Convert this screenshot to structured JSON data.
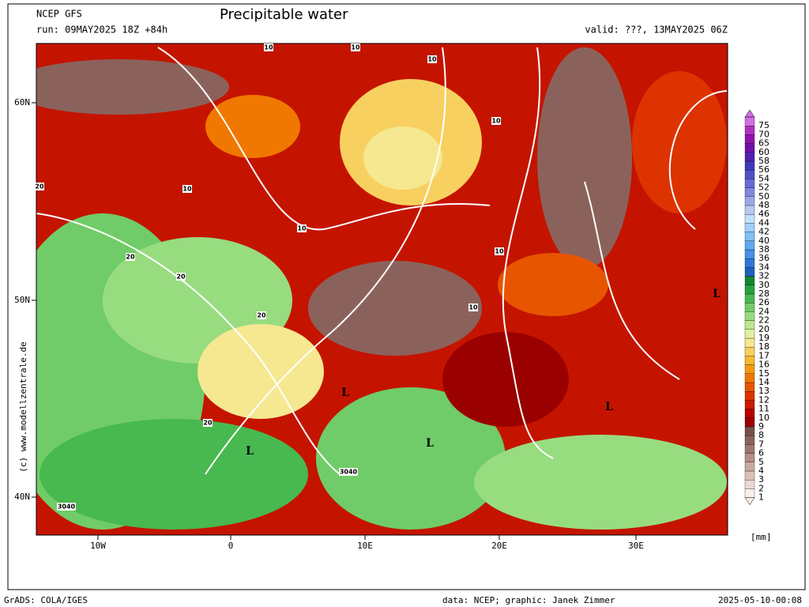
{
  "header": {
    "model": "NCEP GFS",
    "run": "run: 09MAY2025 18Z +84h",
    "title": "Precipitable water",
    "valid": "valid: ???, 13MAY2025 06Z"
  },
  "map": {
    "lat_labels": [
      "60N",
      "50N",
      "40N"
    ],
    "lon_labels": [
      "10W",
      "0",
      "10E",
      "20E",
      "30E"
    ],
    "contour_labels": [
      "10",
      "10",
      "10",
      "10",
      "10",
      "10",
      "10",
      "10",
      "20",
      "20",
      "20",
      "20",
      "20",
      "L",
      "L",
      "L",
      "L",
      "L",
      "3040",
      "3040"
    ]
  },
  "colorbar": {
    "unit": "[mm]",
    "labels": [
      "1",
      "2",
      "3",
      "4",
      "5",
      "6",
      "7",
      "8",
      "9",
      "10",
      "11",
      "12",
      "13",
      "14",
      "15",
      "16",
      "17",
      "18",
      "19",
      "20",
      "22",
      "24",
      "26",
      "28",
      "30",
      "32",
      "34",
      "36",
      "38",
      "40",
      "42",
      "44",
      "46",
      "48",
      "50",
      "52",
      "54",
      "56",
      "58",
      "60",
      "65",
      "70",
      "75"
    ],
    "colors": [
      "#fbeee8",
      "#ecd8d2",
      "#dcc1b8",
      "#c9a99f",
      "#b48f86",
      "#9f776e",
      "#8b625b",
      "#77514b",
      "#9b0000",
      "#b80000",
      "#cc1a00",
      "#dd3300",
      "#e85500",
      "#f07800",
      "#f59a10",
      "#f8b830",
      "#f8d060",
      "#f5e890",
      "#e0f0a0",
      "#bde890",
      "#98dc80",
      "#70cc68",
      "#48b850",
      "#28a040",
      "#108830",
      "#2060c0",
      "#3078d8",
      "#4890e8",
      "#60a8f0",
      "#80c0f5",
      "#a0d0f8",
      "#c0e0fa",
      "#b8c8f0",
      "#98a8e8",
      "#8088e0",
      "#6868d8",
      "#5050c8",
      "#4038b8",
      "#5020b0",
      "#7010a8",
      "#9010b0",
      "#b030c0",
      "#d070e0"
    ]
  },
  "footer": {
    "credit": "(c) www.modellzentrale.de",
    "grads": "GrADS: COLA/IGES",
    "source": "data: NCEP; graphic: Janek Zimmer",
    "timestamp": "2025-05-10-00:08"
  }
}
